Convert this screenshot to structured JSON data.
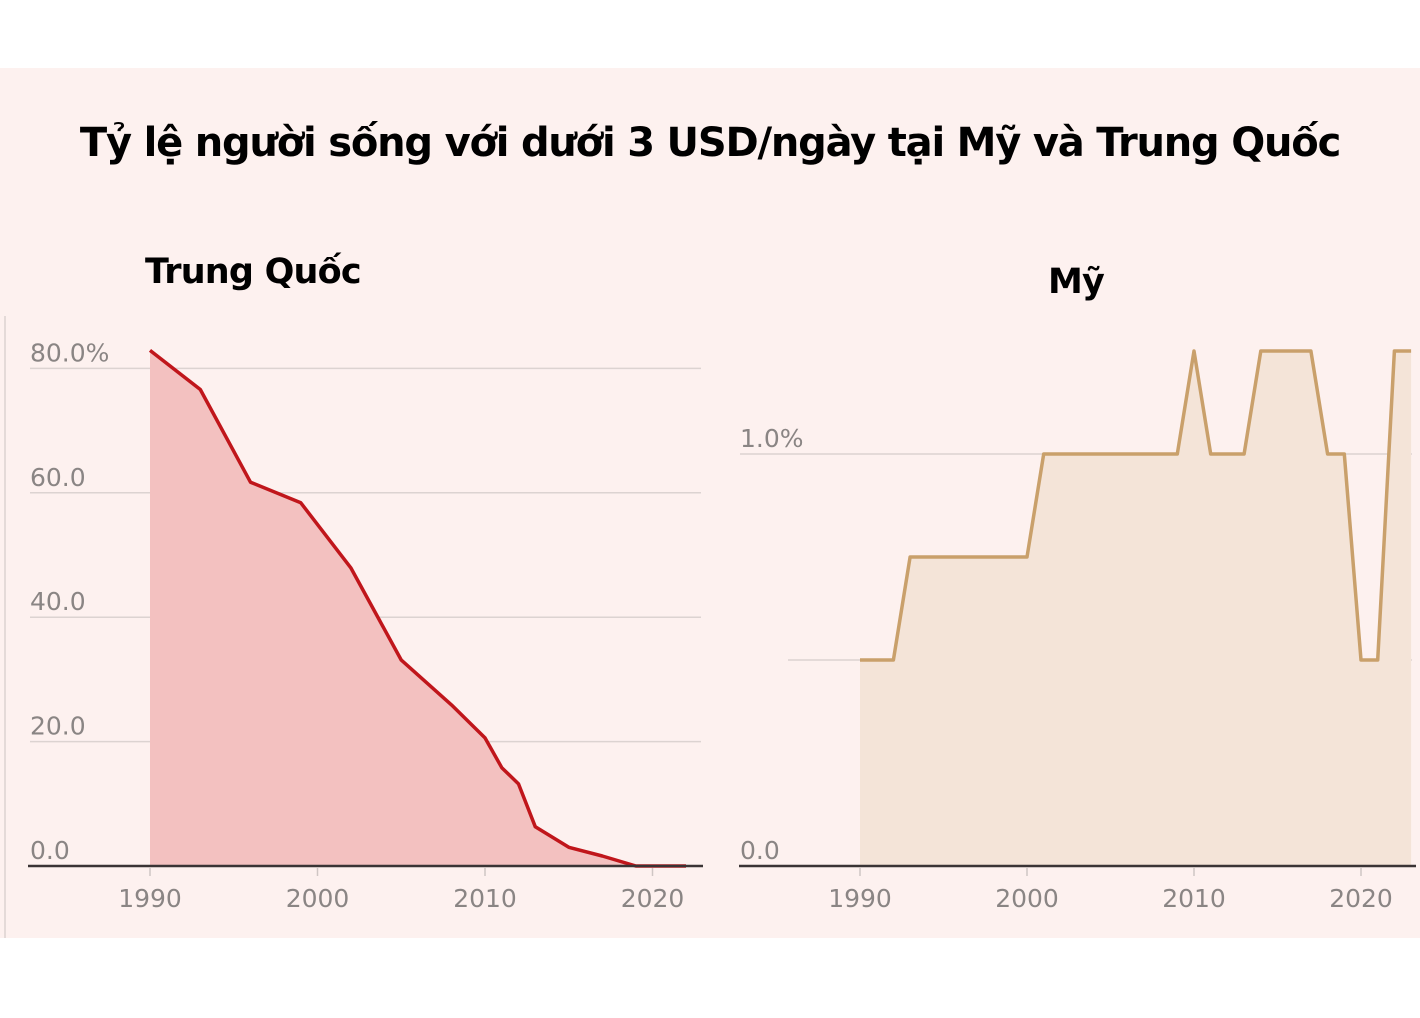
{
  "title": "Tỷ lệ người sống với dưới 3 USD/ngày tại Mỹ và Trung Quốc",
  "colors": {
    "background": "#fdf1ef",
    "china_line": "#c0161b",
    "china_fill": "#f3c1c0",
    "us_line": "#c9a06b",
    "us_fill": "#f4e4d8",
    "grid": "#dcd3d1",
    "axis": "#3a3435",
    "tick_text": "#8a8584"
  },
  "chart_data": [
    {
      "type": "area",
      "title": "Trung Quốc",
      "xlabel": "",
      "ylabel": "",
      "x": [
        1990,
        1993,
        1996,
        1999,
        2002,
        2005,
        2008,
        2010,
        2011,
        2012,
        2013,
        2015,
        2017,
        2019,
        2022
      ],
      "series": [
        {
          "name": "Trung Quốc",
          "values": [
            82.9,
            76.6,
            61.7,
            58.4,
            47.9,
            33.1,
            25.9,
            20.6,
            15.8,
            13.2,
            6.3,
            3.0,
            1.6,
            0.0,
            0.0
          ]
        }
      ],
      "yticks": [
        "0.0",
        "20.0",
        "40.0",
        "60.0",
        "80.0%"
      ],
      "ytick_values": [
        0,
        20,
        40,
        60,
        80
      ],
      "xticks": [
        "1990",
        "2000",
        "2010",
        "2020"
      ],
      "ylim": [
        0,
        85
      ],
      "xlim": [
        1982.8,
        2023
      ],
      "grid": true
    },
    {
      "type": "area",
      "title": "Mỹ",
      "xlabel": "",
      "ylabel": "",
      "x": [
        1990,
        1991,
        1992,
        1993,
        1994,
        1995,
        1996,
        1997,
        1998,
        1999,
        2000,
        2001,
        2002,
        2003,
        2004,
        2005,
        2006,
        2007,
        2008,
        2009,
        2010,
        2011,
        2012,
        2013,
        2014,
        2015,
        2016,
        2017,
        2018,
        2019,
        2020,
        2021,
        2022,
        2023
      ],
      "series": [
        {
          "name": "Mỹ",
          "values": [
            0.5,
            0.5,
            0.5,
            0.75,
            0.75,
            0.75,
            0.75,
            0.75,
            0.75,
            0.75,
            0.75,
            1.0,
            1.0,
            1.0,
            1.0,
            1.0,
            1.0,
            1.0,
            1.0,
            1.0,
            1.25,
            1.0,
            1.0,
            1.0,
            1.25,
            1.25,
            1.25,
            1.25,
            1.0,
            1.0,
            0.5,
            0.5,
            1.25,
            1.25
          ]
        }
      ],
      "yticks": [
        "0.0",
        "1.0%"
      ],
      "ytick_values": [
        0,
        1.0
      ],
      "gridlines": [
        0.5,
        1.0
      ],
      "xticks": [
        "1990",
        "2000",
        "2010",
        "2020"
      ],
      "ylim": [
        0,
        1.3
      ],
      "xlim": [
        1982.8,
        2023.3
      ],
      "grid": true
    }
  ]
}
